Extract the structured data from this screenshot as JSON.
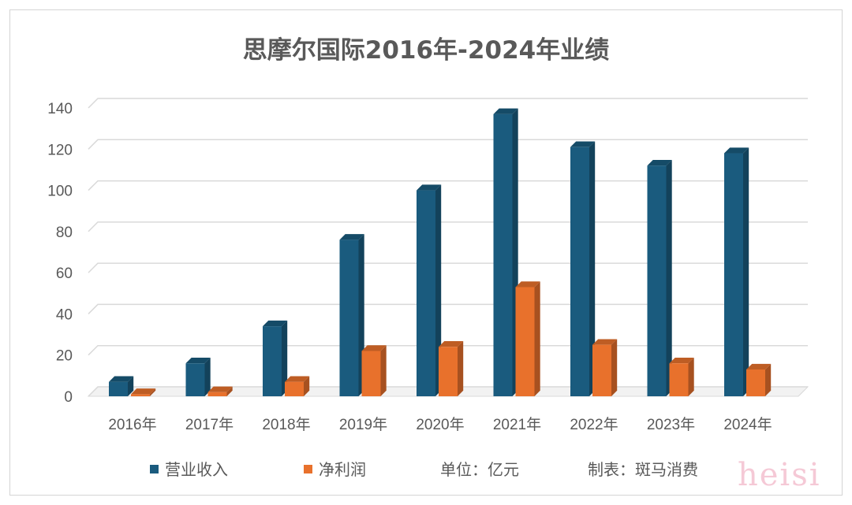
{
  "chart_data": {
    "type": "bar",
    "title": "思摩尔国际2016年-2024年业绩",
    "categories": [
      "2016年",
      "2017年",
      "2018年",
      "2019年",
      "2020年",
      "2021年",
      "2022年",
      "2023年",
      "2024年"
    ],
    "series": [
      {
        "name": "营业收入",
        "color": "#1a5b7e",
        "values": [
          7,
          16,
          34,
          76,
          100,
          137,
          121,
          112,
          118
        ]
      },
      {
        "name": "净利润",
        "color": "#e8712c",
        "values": [
          1,
          2,
          7,
          22,
          24,
          53,
          25,
          16,
          13
        ]
      }
    ],
    "ylim": [
      0,
      140
    ],
    "yticks": [
      0,
      20,
      40,
      60,
      80,
      100,
      120,
      140
    ],
    "grid": true,
    "legend_position": "bottom",
    "unit_note": "单位：亿元",
    "source_note": "制表：斑马消费"
  },
  "watermark": "heisi"
}
